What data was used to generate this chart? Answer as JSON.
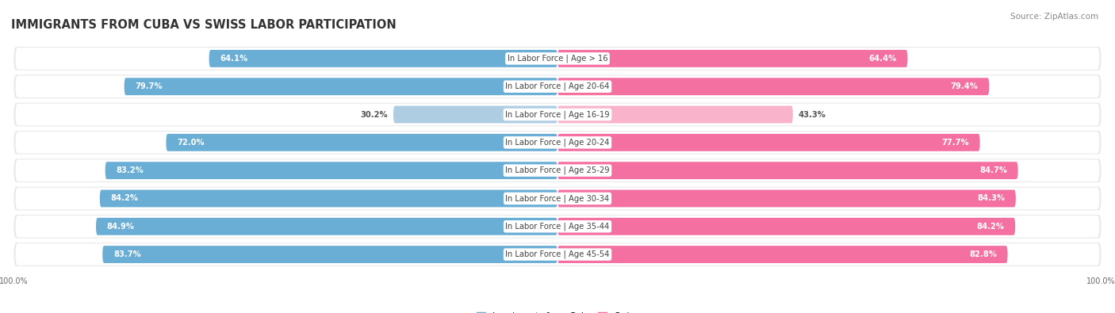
{
  "title": "IMMIGRANTS FROM CUBA VS SWISS LABOR PARTICIPATION",
  "source": "Source: ZipAtlas.com",
  "categories": [
    "In Labor Force | Age > 16",
    "In Labor Force | Age 20-64",
    "In Labor Force | Age 16-19",
    "In Labor Force | Age 20-24",
    "In Labor Force | Age 25-29",
    "In Labor Force | Age 30-34",
    "In Labor Force | Age 35-44",
    "In Labor Force | Age 45-54"
  ],
  "cuba_values": [
    64.1,
    79.7,
    30.2,
    72.0,
    83.2,
    84.2,
    84.9,
    83.7
  ],
  "swiss_values": [
    64.4,
    79.4,
    43.3,
    77.7,
    84.7,
    84.3,
    84.2,
    82.8
  ],
  "cuba_color": "#6aadd5",
  "cuba_color_light": "#aecde3",
  "swiss_color": "#f470a0",
  "swiss_color_light": "#f9b3cb",
  "row_bg_color": "#e8e8e8",
  "max_value": 100.0,
  "bar_height": 0.62,
  "title_fontsize": 10.5,
  "label_fontsize": 7.2,
  "value_fontsize": 7.2,
  "legend_fontsize": 8,
  "axis_label_fontsize": 7
}
